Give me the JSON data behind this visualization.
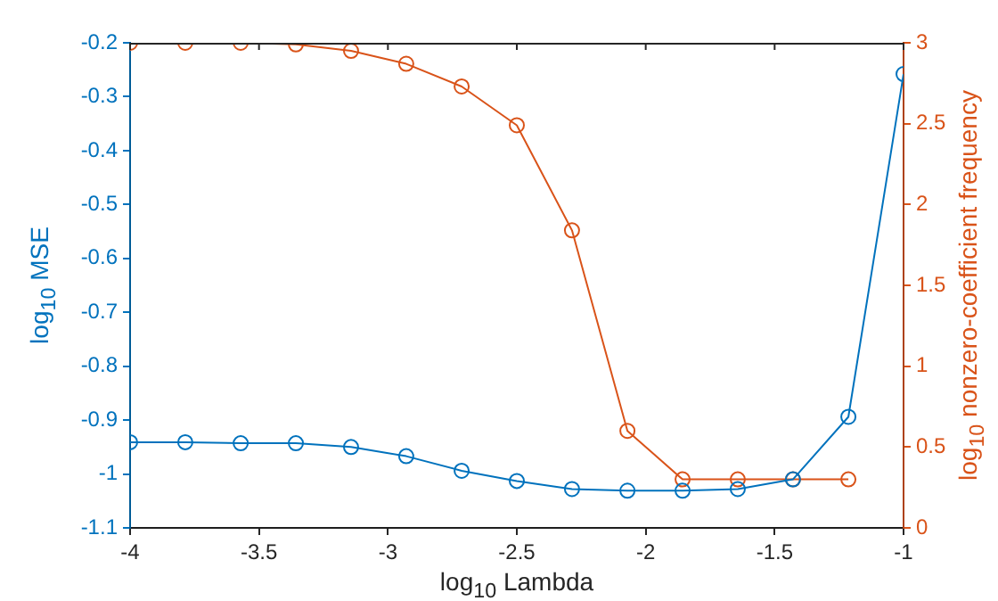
{
  "chart_data": {
    "type": "line",
    "xlabel": "log$_{10}$ Lambda",
    "ylabel": "log$_{10}$ MSE",
    "y2label": "log$_{10}$ nonzero-coefficient frequency",
    "series": [
      {
        "color": "#0072bd",
        "x": [
          -4,
          -3.786,
          -3.571,
          -3.357,
          -3.143,
          -2.929,
          -2.714,
          -2.5,
          -2.286,
          -2.071,
          -1.857,
          -1.643,
          -1.429,
          -1.214,
          -1
        ],
        "values": [
          -0.941,
          -0.941,
          -0.943,
          -0.943,
          -0.95,
          -0.967,
          -0.994,
          -1.013,
          -1.028,
          -1.031,
          -1.031,
          -1.028,
          -1.01,
          -0.894,
          -0.258
        ]
      },
      {
        "color": "#d95319",
        "axis": "y2",
        "x": [
          -4,
          -3.786,
          -3.571,
          -3.357,
          -3.143,
          -2.929,
          -2.714,
          -2.5,
          -2.286,
          -2.071,
          -1.857,
          -1.643,
          -1.429,
          -1.214
        ],
        "values": [
          3,
          3,
          3,
          2.99,
          2.95,
          2.87,
          2.73,
          2.49,
          1.84,
          0.6,
          0.3,
          0.3,
          0.3,
          0.3
        ]
      }
    ],
    "xlim": [
      -4,
      -1
    ],
    "xticks": [
      -4,
      -3.5,
      -3,
      -2.5,
      -2,
      -1.5,
      -1
    ],
    "ylim": [
      -1.1,
      -0.2
    ],
    "yticks": [
      -1.1,
      -1,
      -0.9,
      -0.8,
      -0.7,
      -0.6,
      -0.5,
      -0.4,
      -0.3,
      -0.2
    ],
    "y2lim": [
      0,
      3
    ],
    "y2ticks": [
      0,
      0.5,
      1,
      1.5,
      2,
      2.5,
      3
    ],
    "grid": false,
    "legend": false,
    "marker": "circle",
    "line_style": "solid"
  }
}
